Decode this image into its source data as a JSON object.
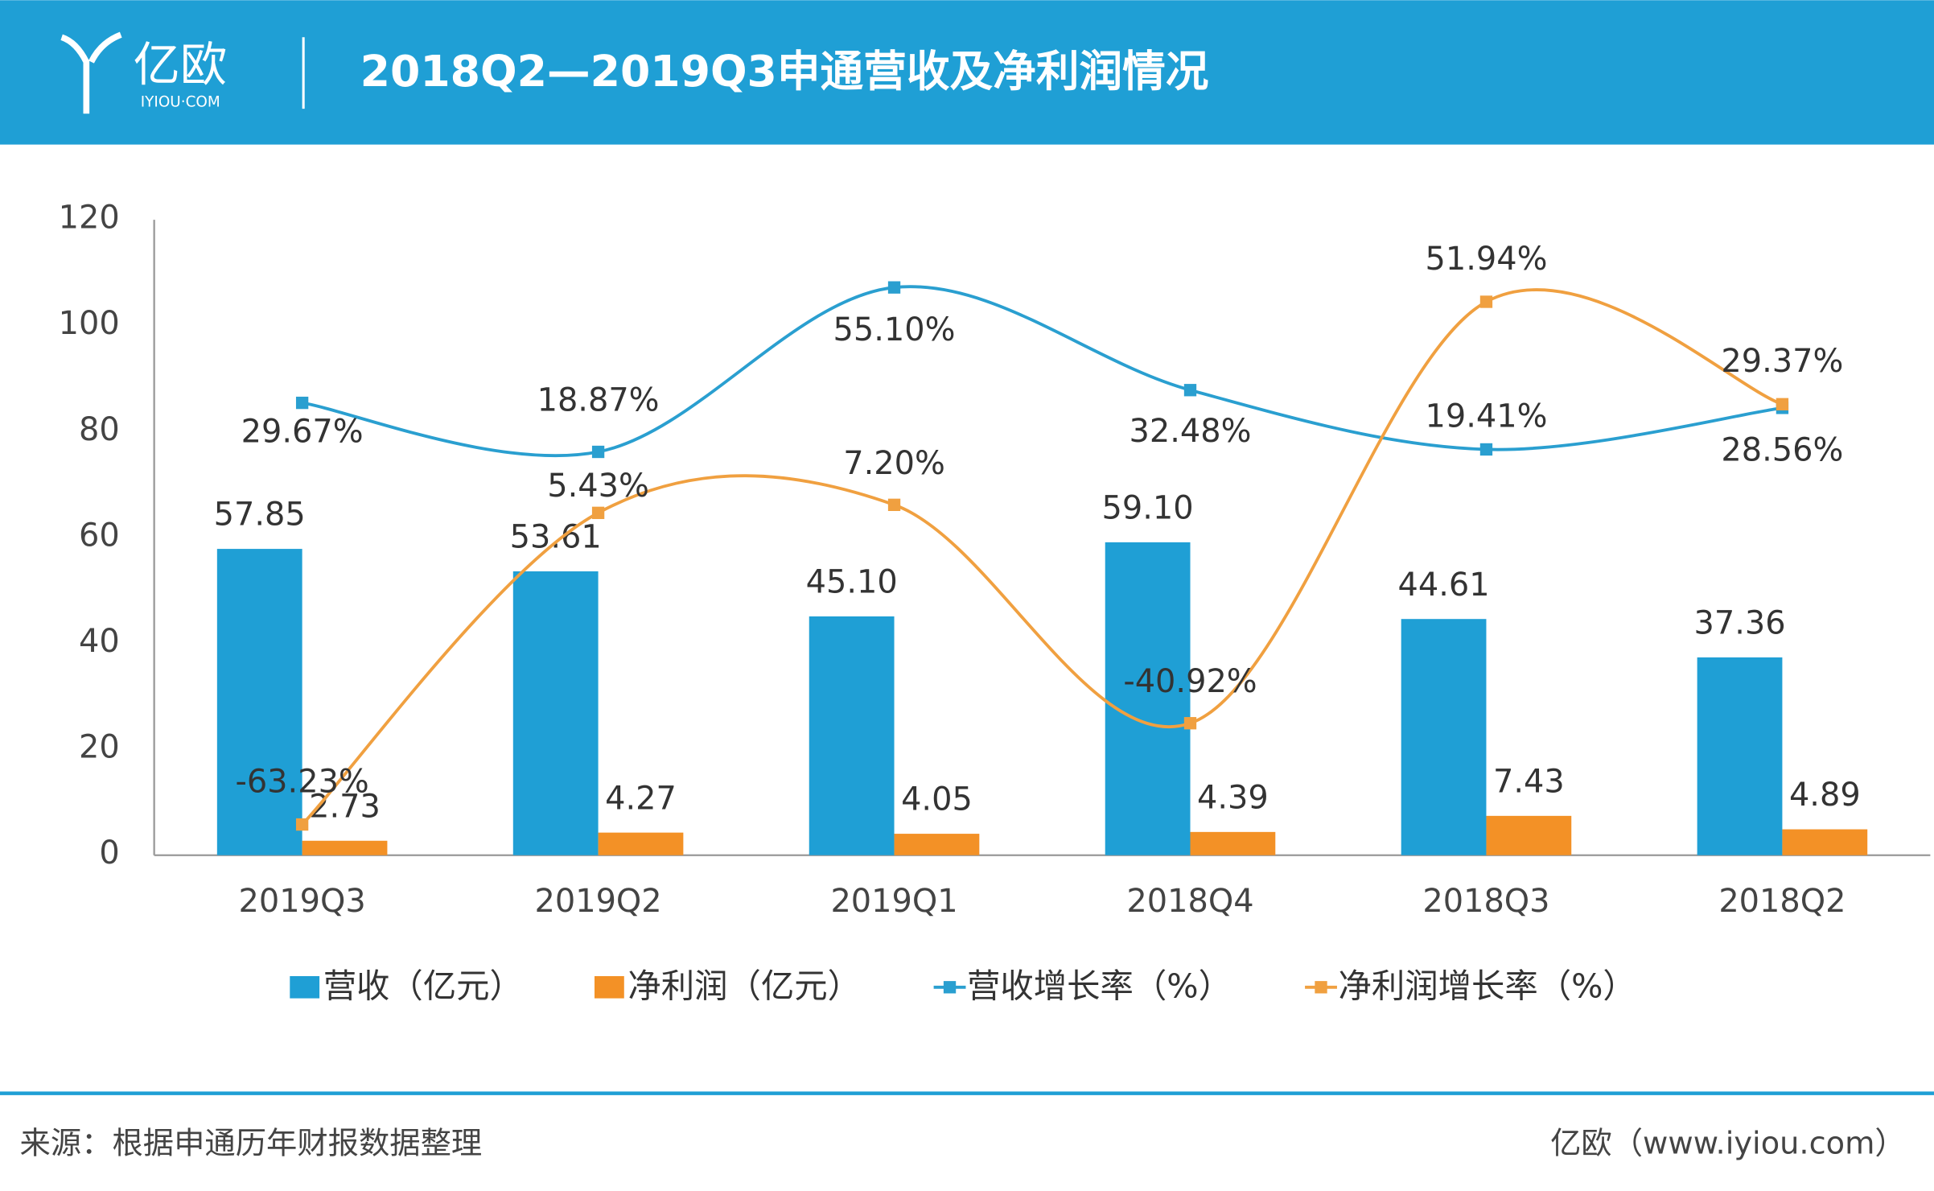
{
  "header": {
    "logo": "亿欧",
    "logo_sub": "IYIOU·COM"
  },
  "chart_data": {
    "type": "bar-line",
    "title": "2018Q2—2019Q3申通营收及净利润情况",
    "categories": [
      "2019Q3",
      "2019Q2",
      "2019Q1",
      "2018Q4",
      "2018Q3",
      "2018Q2"
    ],
    "ylim": [
      0,
      120
    ],
    "yticks": [
      0,
      20,
      40,
      60,
      80,
      100,
      120
    ],
    "y2lim": [
      -70,
      70
    ],
    "series": [
      {
        "name": "营收（亿元）",
        "kind": "bar",
        "color": "#1f9fd5",
        "values": [
          57.85,
          53.61,
          45.1,
          59.1,
          44.61,
          37.36
        ],
        "value_labels": [
          "57.85",
          "53.61",
          "45.10",
          "59.10",
          "44.61",
          "37.36"
        ]
      },
      {
        "name": "净利润（亿元）",
        "kind": "bar",
        "color": "#f39126",
        "values": [
          2.73,
          4.27,
          4.05,
          4.39,
          7.43,
          4.89
        ],
        "value_labels": [
          "2.73",
          "4.27",
          "4.05",
          "4.39",
          "7.43",
          "4.89"
        ]
      },
      {
        "name": "营收增长率（%）",
        "kind": "line",
        "axis": "y2",
        "color": "#2a9fd0",
        "values": [
          29.67,
          18.87,
          55.1,
          32.48,
          19.41,
          28.56
        ],
        "value_labels": [
          "29.67%",
          "18.87%",
          "55.10%",
          "32.48%",
          "19.41%",
          "28.56%"
        ]
      },
      {
        "name": "净利润增长率（%）",
        "kind": "line",
        "axis": "y2",
        "color": "#f0a040",
        "values": [
          -63.23,
          5.43,
          7.2,
          -40.92,
          51.94,
          29.37
        ],
        "value_labels": [
          "-63.23%",
          "5.43%",
          "7.20%",
          "-40.92%",
          "51.94%",
          "29.37%"
        ]
      }
    ]
  },
  "footer": {
    "source": "来源：根据申通历年财报数据整理",
    "site": "亿欧（www.iyiou.com）"
  }
}
